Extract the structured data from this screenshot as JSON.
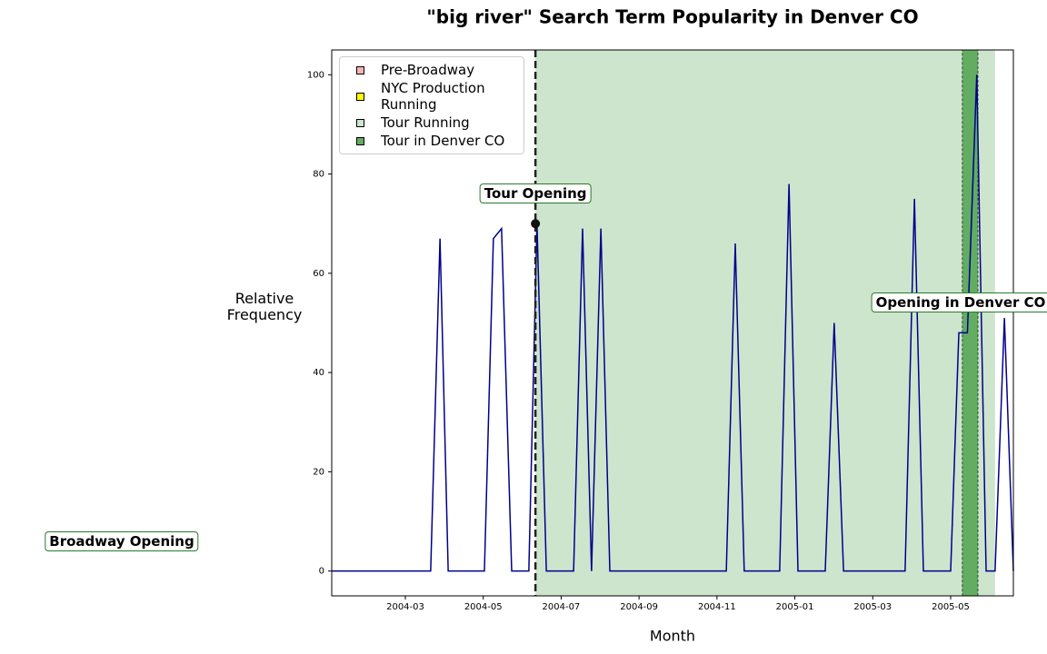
{
  "chart_data": {
    "type": "line",
    "title": "\"big river\" Search Term Popularity in Denver CO",
    "xlabel": "Month",
    "ylabel": "Relative Frequency",
    "x": [
      0.11,
      2.65,
      2.89,
      3.1,
      4.03,
      4.26,
      4.47,
      4.73,
      5.17,
      5.38,
      5.62,
      6.32,
      6.55,
      6.78,
      7.02,
      7.25,
      10.24,
      10.47,
      10.7,
      11.61,
      11.85,
      12.08,
      12.78,
      13.01,
      13.25,
      14.83,
      15.07,
      15.3,
      16.0,
      16.21,
      16.43,
      16.67,
      16.91,
      17.14,
      17.38,
      17.61
    ],
    "series": [
      {
        "color": "#00008b",
        "values": [
          0,
          0,
          67,
          0,
          0,
          67,
          69,
          0,
          0,
          70,
          0,
          0,
          69,
          0,
          69,
          0,
          0,
          66,
          0,
          0,
          78,
          0,
          0,
          50,
          0,
          0,
          75,
          0,
          0,
          48,
          48,
          100,
          0,
          0,
          51,
          0
        ]
      }
    ],
    "xlim": [
      0.11,
      17.61
    ],
    "ylim": [
      -5,
      105
    ],
    "xticks": [
      {
        "value": 2,
        "label": "2004-03"
      },
      {
        "value": 4,
        "label": "2004-05"
      },
      {
        "value": 6,
        "label": "2004-07"
      },
      {
        "value": 8,
        "label": "2004-09"
      },
      {
        "value": 10,
        "label": "2004-11"
      },
      {
        "value": 12,
        "label": "2005-01"
      },
      {
        "value": 14,
        "label": "2005-03"
      },
      {
        "value": 16,
        "label": "2005-05"
      }
    ],
    "yticks": [
      0,
      20,
      40,
      60,
      80,
      100
    ],
    "regions": [
      {
        "name": "Pre-Broadway",
        "color": "#f4b6b6"
      },
      {
        "name": "NYC Production Running",
        "color": "#ffff00"
      },
      {
        "name": "Tour Running",
        "color": "#cde5cd",
        "start": 5.34,
        "end": 17.14
      },
      {
        "name": "Tour in Denver CO",
        "color": "#62ad62",
        "start": 16.3,
        "end": 16.7
      }
    ],
    "vline": 5.34,
    "legend": "upper left",
    "annotations": [
      {
        "text": "Tour Opening",
        "x": 5.34,
        "y": 70
      },
      {
        "text": "Opening in Denver CO"
      },
      {
        "text": "Broadway Opening"
      }
    ]
  }
}
